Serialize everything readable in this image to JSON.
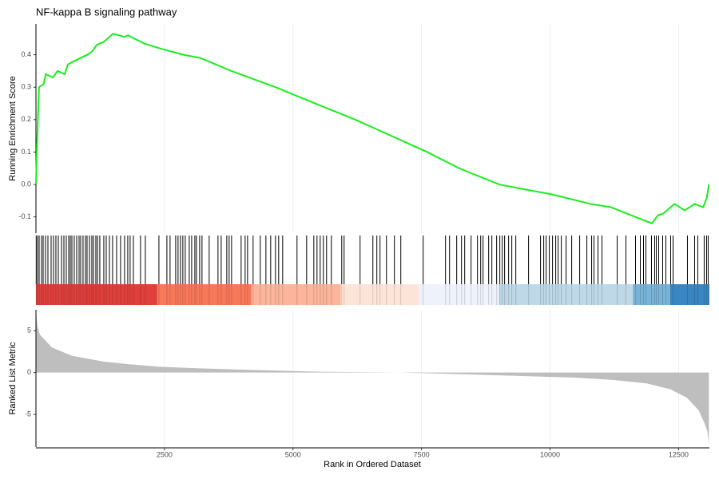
{
  "chart_data": [
    {
      "type": "line",
      "title": "NF-kappa B signaling pathway",
      "ylabel": "Running Enrichment Score",
      "x": [
        0,
        20,
        60,
        150,
        190,
        330,
        420,
        560,
        620,
        800,
        1000,
        1090,
        1180,
        1320,
        1430,
        1500,
        1720,
        1790,
        2100,
        2400,
        2870,
        3200,
        3800,
        4660,
        5430,
        6210,
        6910,
        7610,
        8230,
        9010,
        9500,
        10020,
        10790,
        11180,
        11980,
        12100,
        12200,
        12420,
        12620,
        12810,
        12980,
        13050,
        13090
      ],
      "values": [
        0,
        0.12,
        0.3,
        0.31,
        0.34,
        0.33,
        0.35,
        0.34,
        0.37,
        0.385,
        0.4,
        0.41,
        0.43,
        0.44,
        0.455,
        0.465,
        0.455,
        0.46,
        0.435,
        0.42,
        0.4,
        0.39,
        0.35,
        0.3,
        0.25,
        0.2,
        0.15,
        0.1,
        0.05,
        0.0,
        -0.015,
        -0.03,
        -0.06,
        -0.07,
        -0.12,
        -0.095,
        -0.09,
        -0.06,
        -0.08,
        -0.06,
        -0.07,
        -0.04,
        0.0
      ],
      "color": "#1aee1a",
      "xlim": [
        0,
        13100
      ],
      "ylim": [
        -0.15,
        0.495
      ],
      "yticks": [
        -0.1,
        {
          "value": 0,
          "label": "0.0"
        },
        0.1,
        0.2,
        0.3,
        0.4
      ],
      "grid": true
    },
    {
      "type": "rug",
      "color": "#000000",
      "xlim": [
        0,
        13100
      ],
      "x": [
        5,
        31,
        62,
        109,
        140,
        186,
        233,
        295,
        342,
        388,
        435,
        497,
        544,
        590,
        637,
        668,
        699,
        745,
        792,
        839,
        870,
        916,
        963,
        994,
        1041,
        1087,
        1118,
        1165,
        1196,
        1242,
        1320,
        1367,
        1429,
        1491,
        1569,
        1646,
        1724,
        1786,
        1832,
        1895,
        2034,
        2128,
        2392,
        2547,
        2609,
        2718,
        2764,
        2811,
        2857,
        2904,
        2982,
        3029,
        3091,
        3122,
        3184,
        3230,
        3370,
        3541,
        3603,
        3712,
        3758,
        3805,
        3991,
        4069,
        4116,
        4224,
        4364,
        4473,
        4566,
        4659,
        4721,
        4799,
        5078,
        5265,
        5405,
        5467,
        5529,
        5591,
        5653,
        5746,
        5948,
        5994,
        6305,
        6554,
        6631,
        6693,
        6818,
        6973,
        7097,
        7532,
        7967,
        8045,
        8184,
        8278,
        8340,
        8464,
        8588,
        8651,
        8697,
        8806,
        8868,
        8961,
        9023,
        9070,
        9116,
        9194,
        9256,
        9334,
        9582,
        9815,
        9877,
        9924,
        9986,
        10048,
        10110,
        10157,
        10219,
        10312,
        10421,
        10576,
        10716,
        10809,
        10855,
        10933,
        11010,
        11306,
        11476,
        11663,
        11756,
        11818,
        11865,
        11973,
        12035,
        12066,
        12113,
        12191,
        12253,
        12346,
        12393,
        12672,
        12812,
        12874,
        12998,
        13045,
        13076
      ],
      "colorbar": [
        {
          "start": 0,
          "end": 2360,
          "color": "#e0403c"
        },
        {
          "start": 2360,
          "end": 4190,
          "color": "#f8785a"
        },
        {
          "start": 4190,
          "end": 5930,
          "color": "#fcb49c"
        },
        {
          "start": 5930,
          "end": 7450,
          "color": "#fde4d9"
        },
        {
          "start": 7450,
          "end": 9010,
          "color": "#eef2fb"
        },
        {
          "start": 9010,
          "end": 11610,
          "color": "#bed8e7"
        },
        {
          "start": 11610,
          "end": 12340,
          "color": "#7ab3d8"
        },
        {
          "start": 12340,
          "end": 13100,
          "color": "#3a86c2"
        }
      ]
    },
    {
      "type": "area",
      "ylabel": "Ranked List Metric",
      "xlabel": "Rank in Ordered Dataset",
      "x": [
        0,
        30,
        80,
        310,
        700,
        1320,
        1790,
        2400,
        3180,
        4270,
        5510,
        7070,
        8310,
        9400,
        10480,
        11260,
        11880,
        12340,
        12660,
        12890,
        13000,
        13060,
        13090
      ],
      "values": [
        7.5,
        5.5,
        4.5,
        3,
        2,
        1.3,
        1.0,
        0.7,
        0.5,
        0.3,
        0.1,
        0,
        -0.2,
        -0.4,
        -0.6,
        -0.9,
        -1.3,
        -2,
        -3,
        -4.5,
        -6,
        -7,
        -8.5
      ],
      "color": "#bebebe",
      "xlim": [
        0,
        13100
      ],
      "ylim": [
        -8.9,
        7.5
      ],
      "yticks": [
        -5,
        0,
        5
      ],
      "xticks": [
        2500,
        5000,
        7500,
        10000,
        12500
      ],
      "grid": true
    }
  ]
}
